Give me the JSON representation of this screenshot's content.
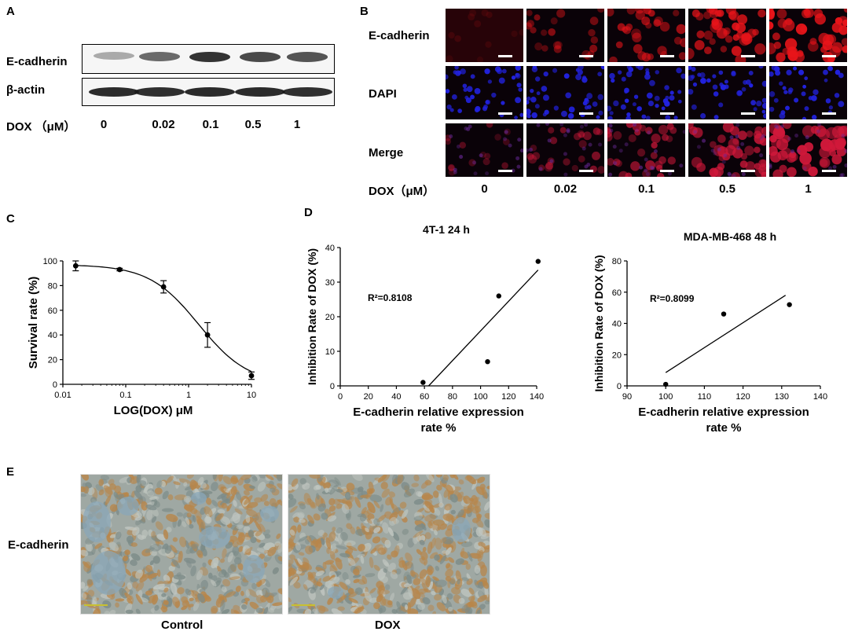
{
  "panels": {
    "A": {
      "letter": "A",
      "rows": [
        "E-cadherin",
        "β-actin"
      ],
      "dose_label": "DOX （μM）",
      "doses": [
        "0",
        "0.02",
        "0.1",
        "0.5",
        "1"
      ],
      "ecad_band_intensity": [
        0.35,
        0.65,
        0.9,
        0.8,
        0.75
      ],
      "actin_band_intensity": [
        0.92,
        0.9,
        0.92,
        0.92,
        0.9
      ]
    },
    "B": {
      "letter": "B",
      "rows": [
        "E-cadherin",
        "DAPI",
        "Merge"
      ],
      "dose_label": "DOX（μM）",
      "doses": [
        "0",
        "0.02",
        "0.1",
        "0.5",
        "1"
      ],
      "red_intensity": [
        0.15,
        0.4,
        0.6,
        0.85,
        1.0
      ],
      "colors": {
        "red": "#e8141a",
        "blue": "#2222e0",
        "bg": "#0a0208"
      }
    },
    "C": {
      "letter": "C"
    },
    "D": {
      "letter": "D"
    },
    "E": {
      "letter": "E",
      "row_label": "E-cadherin",
      "captions": [
        "Control",
        "DOX"
      ]
    }
  },
  "chart_data": [
    {
      "type": "scatter",
      "xlabel": "LOG(DOX)  μM",
      "ylabel": "Survival rate  (%)",
      "xscale": "log",
      "xlim": [
        0.01,
        10
      ],
      "ylim": [
        0,
        100
      ],
      "xticks": [
        "0.01",
        "0.1",
        "1",
        "10"
      ],
      "yticks": [
        "0",
        "20",
        "40",
        "60",
        "80",
        "100"
      ],
      "x": [
        0.016,
        0.08,
        0.4,
        2,
        10
      ],
      "y": [
        96,
        93,
        79,
        40,
        7
      ],
      "yerr": [
        4,
        1,
        5,
        10,
        3
      ],
      "fit": "sigmoid"
    },
    {
      "type": "scatter",
      "title": "4T-1  24 h",
      "annotation": "R²=0.8108",
      "xlabel": "E-cadherin relative expression rate %",
      "ylabel": "Inhibition Rate of DOX (%)",
      "xlim": [
        0,
        140
      ],
      "ylim": [
        0,
        40
      ],
      "xticks": [
        "0",
        "20",
        "40",
        "60",
        "80",
        "100",
        "120",
        "140"
      ],
      "yticks": [
        "0",
        "10",
        "20",
        "30",
        "40"
      ],
      "x": [
        59,
        105,
        113,
        141
      ],
      "y": [
        1,
        7,
        26,
        36
      ],
      "regression": [
        [
          63,
          0
        ],
        [
          141,
          33.5
        ]
      ]
    },
    {
      "type": "scatter",
      "title": "MDA-MB-468 48 h",
      "annotation": "R²=0.8099",
      "xlabel": "E-cadherin relative expression rate %",
      "ylabel": "Inhibition Rate of DOX (%)",
      "xlim": [
        90,
        140
      ],
      "ylim": [
        0,
        80
      ],
      "xticks": [
        "90",
        "100",
        "110",
        "120",
        "130",
        "140"
      ],
      "yticks": [
        "0",
        "20",
        "40",
        "60",
        "80"
      ],
      "x": [
        100,
        115,
        132
      ],
      "y": [
        1,
        46,
        52
      ],
      "regression": [
        [
          100,
          8.5
        ],
        [
          131,
          58
        ]
      ]
    }
  ]
}
